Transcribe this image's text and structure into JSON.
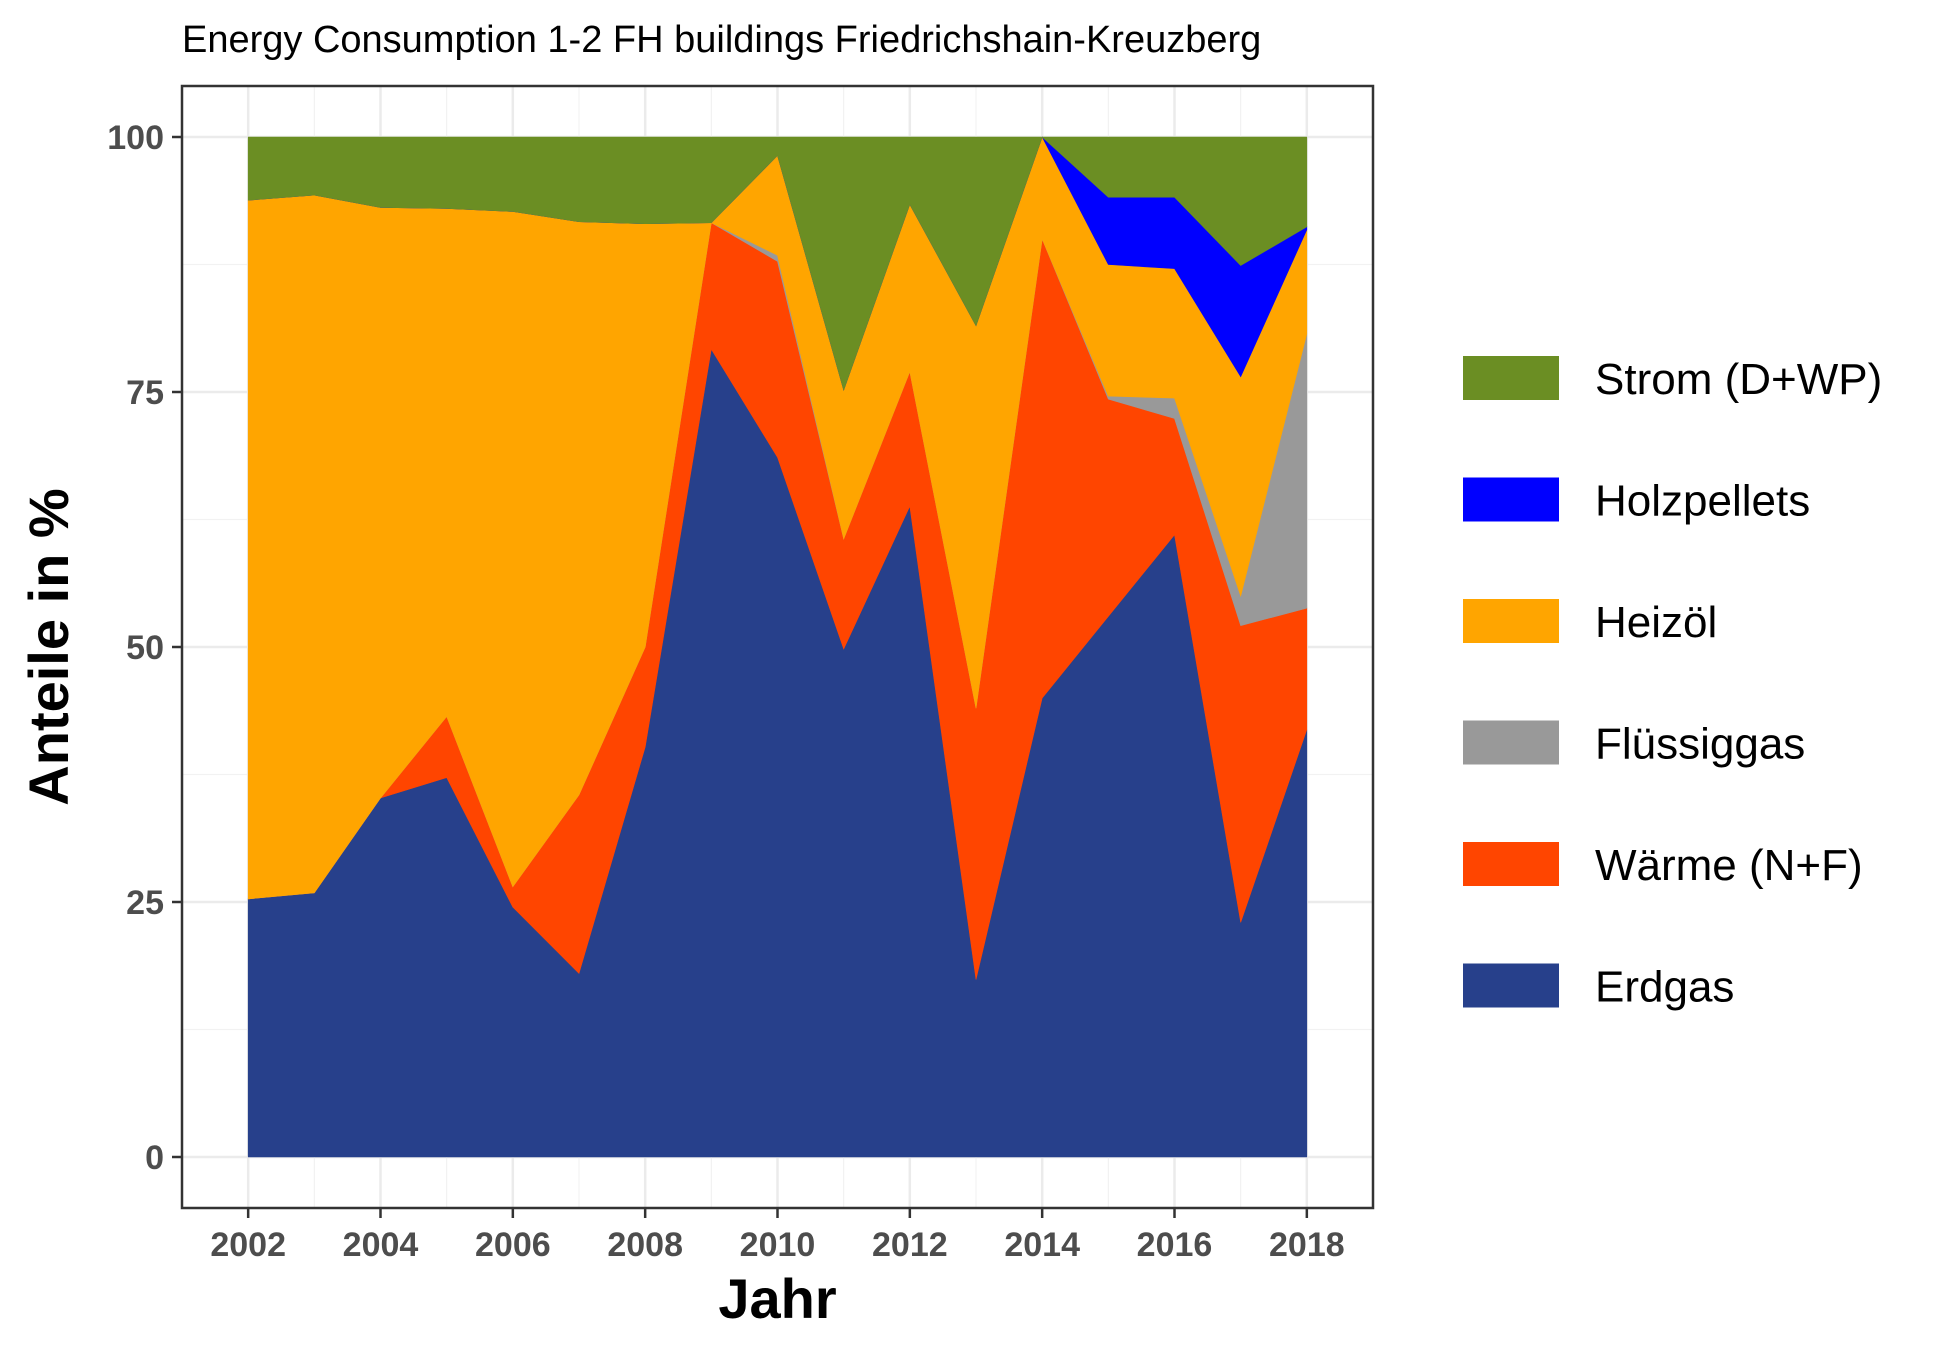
{
  "chart_data": {
    "type": "area",
    "title": "Energy Consumption 1-2 FH buildings Friedrichshain-Kreuzberg",
    "xlabel": "Jahr",
    "ylabel": "Anteile in %",
    "xlim": [
      2001,
      2019
    ],
    "ylim": [
      -5,
      105
    ],
    "x_ticks": [
      2002,
      2004,
      2006,
      2008,
      2010,
      2012,
      2014,
      2016,
      2018
    ],
    "y_ticks": [
      0,
      25,
      50,
      75,
      100
    ],
    "grid": true,
    "legend_position": "right",
    "x": [
      2002,
      2003,
      2004,
      2005,
      2006,
      2007,
      2008,
      2009,
      2010,
      2011,
      2012,
      2013,
      2014,
      2015,
      2016,
      2017,
      2018
    ],
    "series": [
      {
        "name": "Erdgas",
        "color": "#27408b",
        "values": [
          25.3,
          25.9,
          35.2,
          37.2,
          24.5,
          18.0,
          40.2,
          79.2,
          68.6,
          49.8,
          63.8,
          17.4,
          45.0,
          53.0,
          61.0,
          23.0,
          41.9
        ]
      },
      {
        "name": "Wärme (N+F)",
        "color": "#ff4500",
        "values": [
          0,
          0,
          0,
          6.0,
          2.0,
          17.5,
          9.8,
          12.4,
          19.2,
          10.8,
          13.2,
          26.6,
          45.0,
          21.3,
          11.4,
          29.1,
          11.9
        ]
      },
      {
        "name": "Flüssiggas",
        "color": "#999999",
        "values": [
          0,
          0,
          0,
          0,
          0,
          0,
          0,
          0,
          0.6,
          0,
          0,
          0,
          0,
          0.3,
          2.0,
          2.9,
          26.9
        ]
      },
      {
        "name": "Heizöl",
        "color": "#ffa500",
        "values": [
          68.5,
          68.4,
          57.9,
          49.8,
          66.2,
          56.2,
          41.5,
          0,
          9.8,
          14.6,
          16.4,
          37.5,
          10.0,
          12.9,
          12.7,
          21.5,
          10.2
        ]
      },
      {
        "name": "Holzpellets",
        "color": "#0000ff",
        "values": [
          0,
          0,
          0,
          0,
          0,
          0,
          0,
          0,
          0,
          0,
          0,
          0,
          0,
          6.6,
          7.0,
          10.9,
          0.3
        ]
      },
      {
        "name": "Strom (D+WP)",
        "color": "#6b8e23",
        "values": [
          6.2,
          5.7,
          6.9,
          7.0,
          7.3,
          8.3,
          8.5,
          8.4,
          1.8,
          24.8,
          6.6,
          18.5,
          0,
          5.9,
          5.9,
          12.6,
          8.8
        ]
      }
    ],
    "legend_order": [
      "Strom (D+WP)",
      "Holzpellets",
      "Heizöl",
      "Flüssiggas",
      "Wärme (N+F)",
      "Erdgas"
    ]
  }
}
